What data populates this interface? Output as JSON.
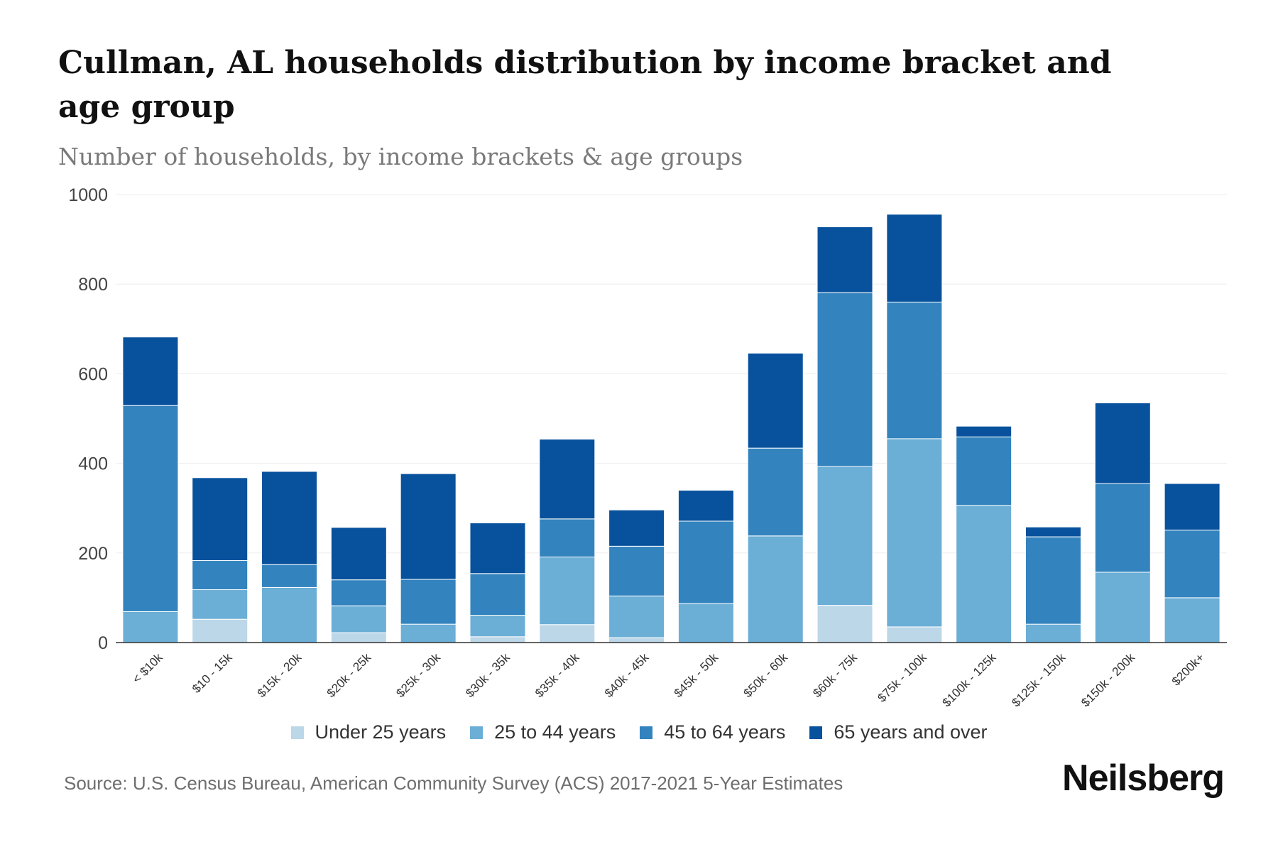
{
  "chart_data": {
    "type": "bar",
    "stacked": true,
    "title": "Cullman, AL households distribution by income bracket and age group",
    "subtitle": "Number of households, by income brackets & age groups",
    "xlabel": "",
    "ylabel": "",
    "ylim": [
      0,
      1000
    ],
    "yticks": [
      0,
      200,
      400,
      600,
      800,
      1000
    ],
    "grid": true,
    "legend_position": "bottom",
    "categories": [
      "< $10k",
      "$10 - 15k",
      "$15k - 20k",
      "$20k - 25k",
      "$25k - 30k",
      "$30k - 35k",
      "$35k - 40k",
      "$40k - 45k",
      "$45k - 50k",
      "$50k - 60k",
      "$60k - 75k",
      "$75k - 100k",
      "$100k - 125k",
      "$125k - 150k",
      "$150k - 200k",
      "$200k+"
    ],
    "series": [
      {
        "name": "Under 25 years",
        "color": "#bcd7e8",
        "values": [
          0,
          52,
          0,
          22,
          0,
          13,
          40,
          11,
          0,
          0,
          83,
          35,
          0,
          0,
          0,
          0
        ]
      },
      {
        "name": "25 to 44 years",
        "color": "#6baed6",
        "values": [
          69,
          66,
          123,
          60,
          41,
          48,
          151,
          93,
          87,
          238,
          310,
          420,
          306,
          41,
          157,
          100
        ]
      },
      {
        "name": "45 to 64 years",
        "color": "#3283be",
        "values": [
          460,
          65,
          51,
          58,
          100,
          93,
          85,
          111,
          184,
          196,
          388,
          305,
          153,
          195,
          198,
          151
        ]
      },
      {
        "name": "65 years and over",
        "color": "#08519c",
        "values": [
          153,
          185,
          208,
          117,
          236,
          113,
          178,
          81,
          69,
          212,
          147,
          196,
          24,
          22,
          180,
          104
        ]
      }
    ]
  },
  "source": "Source: U.S. Census Bureau, American Community Survey (ACS) 2017-2021 5-Year Estimates",
  "brand": "Neilsberg"
}
